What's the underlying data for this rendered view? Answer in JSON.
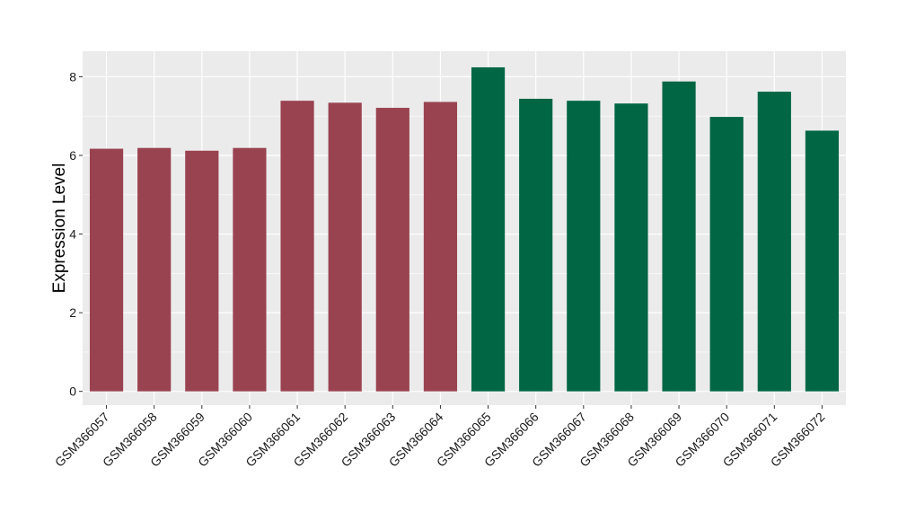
{
  "chart_data": {
    "type": "bar",
    "ylabel": "Expression Level",
    "xlabel": "",
    "ylim": [
      -0.35,
      8.65
    ],
    "yticks": [
      0,
      2,
      4,
      6,
      8
    ],
    "grid": true,
    "colors": {
      "group_a": "#9a4350",
      "group_b": "#006644",
      "panel": "#ebebeb",
      "grid": "#ffffff"
    },
    "categories": [
      "GSM366057",
      "GSM366058",
      "GSM366059",
      "GSM366060",
      "GSM366061",
      "GSM366062",
      "GSM366063",
      "GSM366064",
      "GSM366065",
      "GSM366066",
      "GSM366067",
      "GSM366068",
      "GSM366069",
      "GSM366070",
      "GSM366071",
      "GSM366072"
    ],
    "values": [
      6.17,
      6.19,
      6.12,
      6.19,
      7.39,
      7.34,
      7.21,
      7.36,
      8.24,
      7.44,
      7.39,
      7.32,
      7.88,
      6.98,
      7.62,
      6.63
    ],
    "groups": [
      "a",
      "a",
      "a",
      "a",
      "a",
      "a",
      "a",
      "a",
      "b",
      "b",
      "b",
      "b",
      "b",
      "b",
      "b",
      "b"
    ]
  }
}
